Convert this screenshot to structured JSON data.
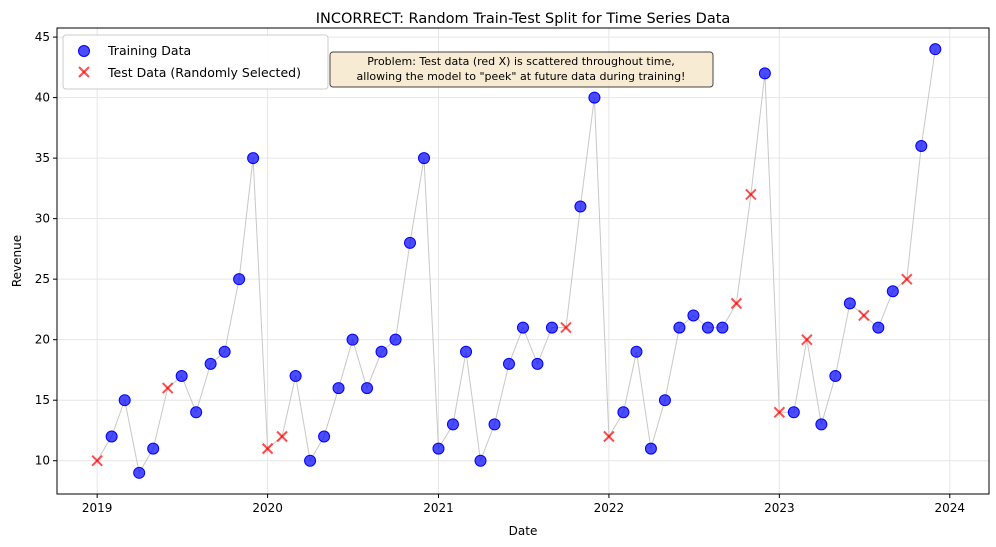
{
  "chart_data": {
    "type": "scatter",
    "title": "INCORRECT: Random Train-Test Split for Time Series Data",
    "xlabel": "Date",
    "ylabel": "Revenue",
    "xlim": [
      "2018-10-07",
      "2024-03-25"
    ],
    "ylim": [
      7.25,
      45.75
    ],
    "x_ticks": [
      "2019",
      "2020",
      "2021",
      "2022",
      "2023",
      "2024"
    ],
    "y_ticks": [
      10,
      15,
      20,
      25,
      30,
      35,
      40,
      45
    ],
    "grid": true,
    "legend_position": "upper-left",
    "annotation": {
      "lines": [
        "Problem: Test data (red X) is scattered throughout time,",
        "allowing the model to \"peek\" at future data during training!"
      ]
    },
    "x": [
      "2019-01",
      "2019-02",
      "2019-03",
      "2019-04",
      "2019-05",
      "2019-06",
      "2019-07",
      "2019-08",
      "2019-09",
      "2019-10",
      "2019-11",
      "2019-12",
      "2020-01",
      "2020-02",
      "2020-03",
      "2020-04",
      "2020-05",
      "2020-06",
      "2020-07",
      "2020-08",
      "2020-09",
      "2020-10",
      "2020-11",
      "2020-12",
      "2021-01",
      "2021-02",
      "2021-03",
      "2021-04",
      "2021-05",
      "2021-06",
      "2021-07",
      "2021-08",
      "2021-09",
      "2021-10",
      "2021-11",
      "2021-12",
      "2022-01",
      "2022-02",
      "2022-03",
      "2022-04",
      "2022-05",
      "2022-06",
      "2022-07",
      "2022-08",
      "2022-09",
      "2022-10",
      "2022-11",
      "2022-12",
      "2023-01",
      "2023-02",
      "2023-03",
      "2023-04",
      "2023-05",
      "2023-06",
      "2023-07",
      "2023-08",
      "2023-09",
      "2023-10",
      "2023-11",
      "2023-12"
    ],
    "values": [
      10,
      12,
      15,
      9,
      11,
      16,
      17,
      14,
      18,
      19,
      25,
      35,
      11,
      12,
      17,
      10,
      12,
      16,
      20,
      16,
      19,
      20,
      28,
      35,
      11,
      13,
      19,
      10,
      13,
      18,
      21,
      18,
      21,
      21,
      31,
      40,
      12,
      14,
      19,
      11,
      15,
      21,
      22,
      21,
      21,
      23,
      32,
      42,
      14,
      14,
      20,
      13,
      17,
      23,
      22,
      21,
      24,
      25,
      36,
      44
    ],
    "is_test": [
      1,
      0,
      0,
      0,
      0,
      1,
      0,
      0,
      0,
      0,
      0,
      0,
      1,
      1,
      0,
      0,
      0,
      0,
      0,
      0,
      0,
      0,
      0,
      0,
      0,
      0,
      0,
      0,
      0,
      0,
      0,
      0,
      0,
      1,
      0,
      0,
      1,
      0,
      0,
      0,
      0,
      0,
      0,
      0,
      0,
      1,
      1,
      0,
      1,
      0,
      1,
      0,
      0,
      0,
      1,
      0,
      0,
      1,
      0,
      0
    ],
    "series": [
      {
        "name": "Training Data",
        "marker": "circle",
        "color": "#0000ff"
      },
      {
        "name": "Test Data (Randomly Selected)",
        "marker": "x",
        "color": "#ff0000"
      }
    ],
    "line_color": "#c8c8c8"
  }
}
